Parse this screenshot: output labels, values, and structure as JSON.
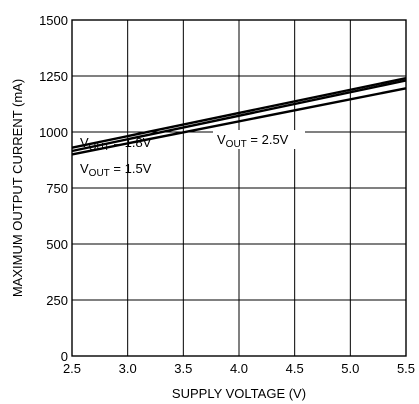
{
  "chart_data": {
    "type": "line",
    "title": "",
    "xlabel": "SUPPLY VOLTAGE (V)",
    "ylabel": "MAXIMUM OUTPUT CURRENT (mA)",
    "xlim": [
      2.5,
      5.5
    ],
    "ylim": [
      0,
      1500
    ],
    "x_ticks": [
      2.5,
      3.0,
      3.5,
      4.0,
      4.5,
      5.0,
      5.5
    ],
    "x_tick_labels": [
      "2.5",
      "3.0",
      "3.5",
      "4.0",
      "4.5",
      "5.0",
      "5.5"
    ],
    "y_ticks": [
      0,
      250,
      500,
      750,
      1000,
      1250,
      1500
    ],
    "y_tick_labels": [
      "0",
      "250",
      "500",
      "750",
      "1000",
      "1250",
      "1500"
    ],
    "grid": true,
    "legend": "none",
    "line_color": "#000000",
    "series": [
      {
        "name": "V_OUT = 1.8V",
        "label_main": "V",
        "label_sub": "OUT",
        "label_rest": " = 1.8V",
        "x": [
          2.5,
          5.5
        ],
        "y": [
          930,
          1240
        ]
      },
      {
        "name": "V_OUT = 2.5V",
        "label_main": "V",
        "label_sub": "OUT",
        "label_rest": " = 2.5V",
        "x": [
          2.5,
          5.5
        ],
        "y": [
          915,
          1230
        ]
      },
      {
        "name": "V_OUT = 1.5V",
        "label_main": "V",
        "label_sub": "OUT",
        "label_rest": " = 1.5V",
        "x": [
          2.5,
          5.5
        ],
        "y": [
          900,
          1195
        ]
      }
    ]
  }
}
